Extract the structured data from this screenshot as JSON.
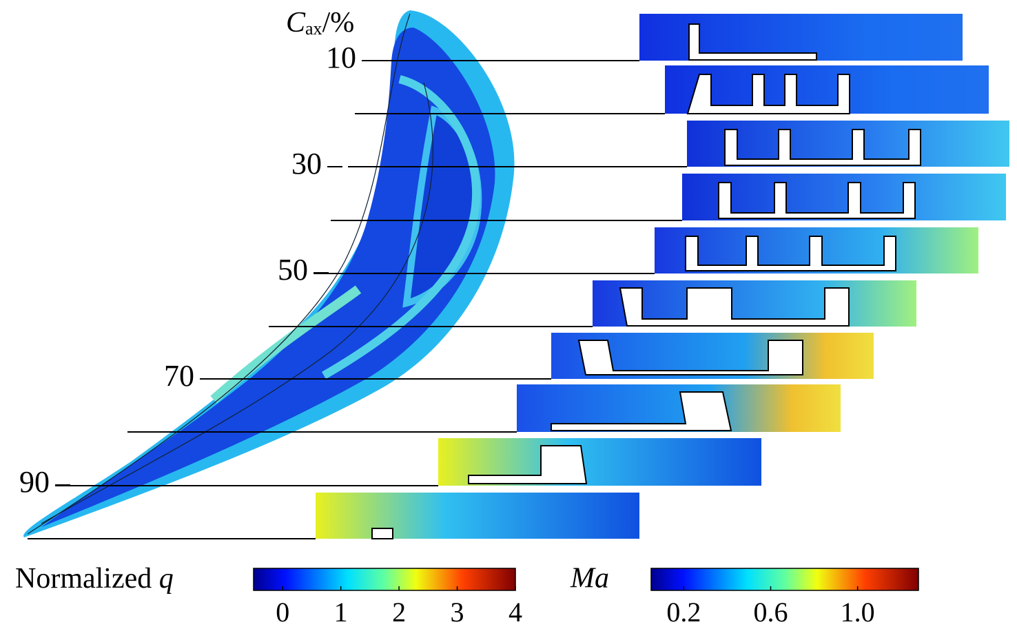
{
  "axis": {
    "label_main": "C",
    "label_sub": "ax",
    "label_unit": "/%",
    "ticks": [
      10,
      30,
      50,
      70,
      90
    ]
  },
  "colorbars": [
    {
      "label": "Normalized",
      "symbol": "q",
      "lim": [
        -0.5,
        4
      ],
      "ticks": [
        0,
        1,
        2,
        3,
        4
      ]
    },
    {
      "symbol": "Ma",
      "lim": [
        0.05,
        1.28
      ],
      "ticks": [
        0.2,
        0.6,
        {
          "value": 1,
          "label": "1.0"
        }
      ]
    }
  ]
}
